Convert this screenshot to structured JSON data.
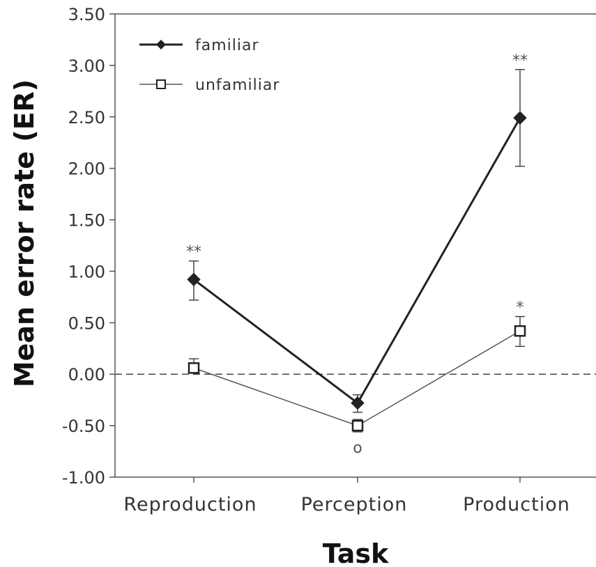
{
  "chart_data": {
    "type": "line",
    "xlabel": "Task",
    "ylabel": "Mean error rate (ER)",
    "categories": [
      "Reproduction",
      "Perception",
      "Production"
    ],
    "ylim": [
      -1.0,
      3.5
    ],
    "yticks": [
      "3.50",
      "3.00",
      "2.50",
      "2.00",
      "1.50",
      "1.00",
      "0.50",
      "0.00",
      "-0.50",
      "-1.00"
    ],
    "ytick_values": [
      3.5,
      3.0,
      2.5,
      2.0,
      1.5,
      1.0,
      0.5,
      0.0,
      -0.5,
      -1.0
    ],
    "reference_line": 0.0,
    "grid": false,
    "legend_position": "top-left",
    "series": [
      {
        "name": "familiar",
        "marker": "filled-diamond",
        "values": [
          0.92,
          -0.28,
          2.49
        ],
        "error_low": [
          0.72,
          -0.37,
          2.02
        ],
        "error_high": [
          1.1,
          -0.2,
          2.96
        ],
        "annotations": [
          "**",
          "",
          "**"
        ]
      },
      {
        "name": "unfamiliar",
        "marker": "open-square",
        "values": [
          0.06,
          -0.5,
          0.42
        ],
        "error_low": [
          0.01,
          -0.56,
          0.27
        ],
        "error_high": [
          0.15,
          -0.44,
          0.56
        ],
        "annotations": [
          "",
          "o",
          "*"
        ]
      }
    ]
  }
}
